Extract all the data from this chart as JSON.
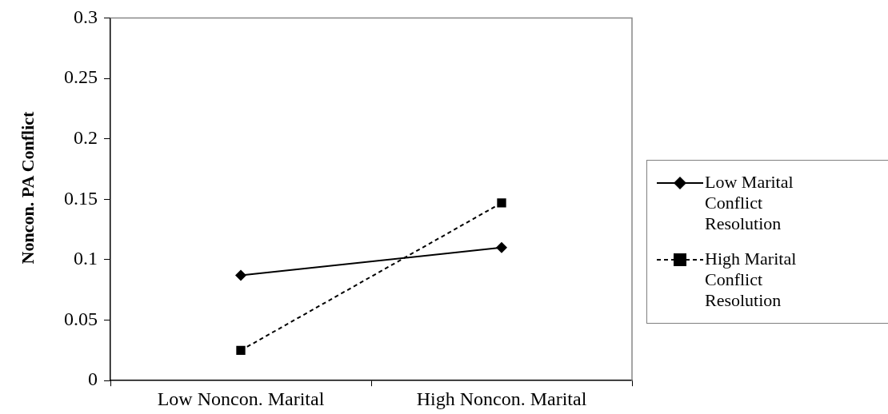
{
  "chart_data": {
    "type": "line",
    "ylabel": "Noncon. PA Conflict",
    "categories": [
      "Low Noncon. Marital",
      "High Noncon. Marital"
    ],
    "series": [
      {
        "name": "Low Marital Conflict Resolution",
        "color": "#000000",
        "values": [
          0.087,
          0.11
        ],
        "marker": "diamond",
        "line_style": "solid"
      },
      {
        "name": "High Marital Conflict Resolution",
        "color": "#000000",
        "values": [
          0.025,
          0.147
        ],
        "marker": "square",
        "line_style": "dashed"
      }
    ],
    "ylim": [
      0,
      0.3
    ],
    "yticks": [
      0,
      0.05,
      0.1,
      0.15,
      0.2,
      0.25,
      0.3
    ],
    "grid": false,
    "legend": "right"
  }
}
